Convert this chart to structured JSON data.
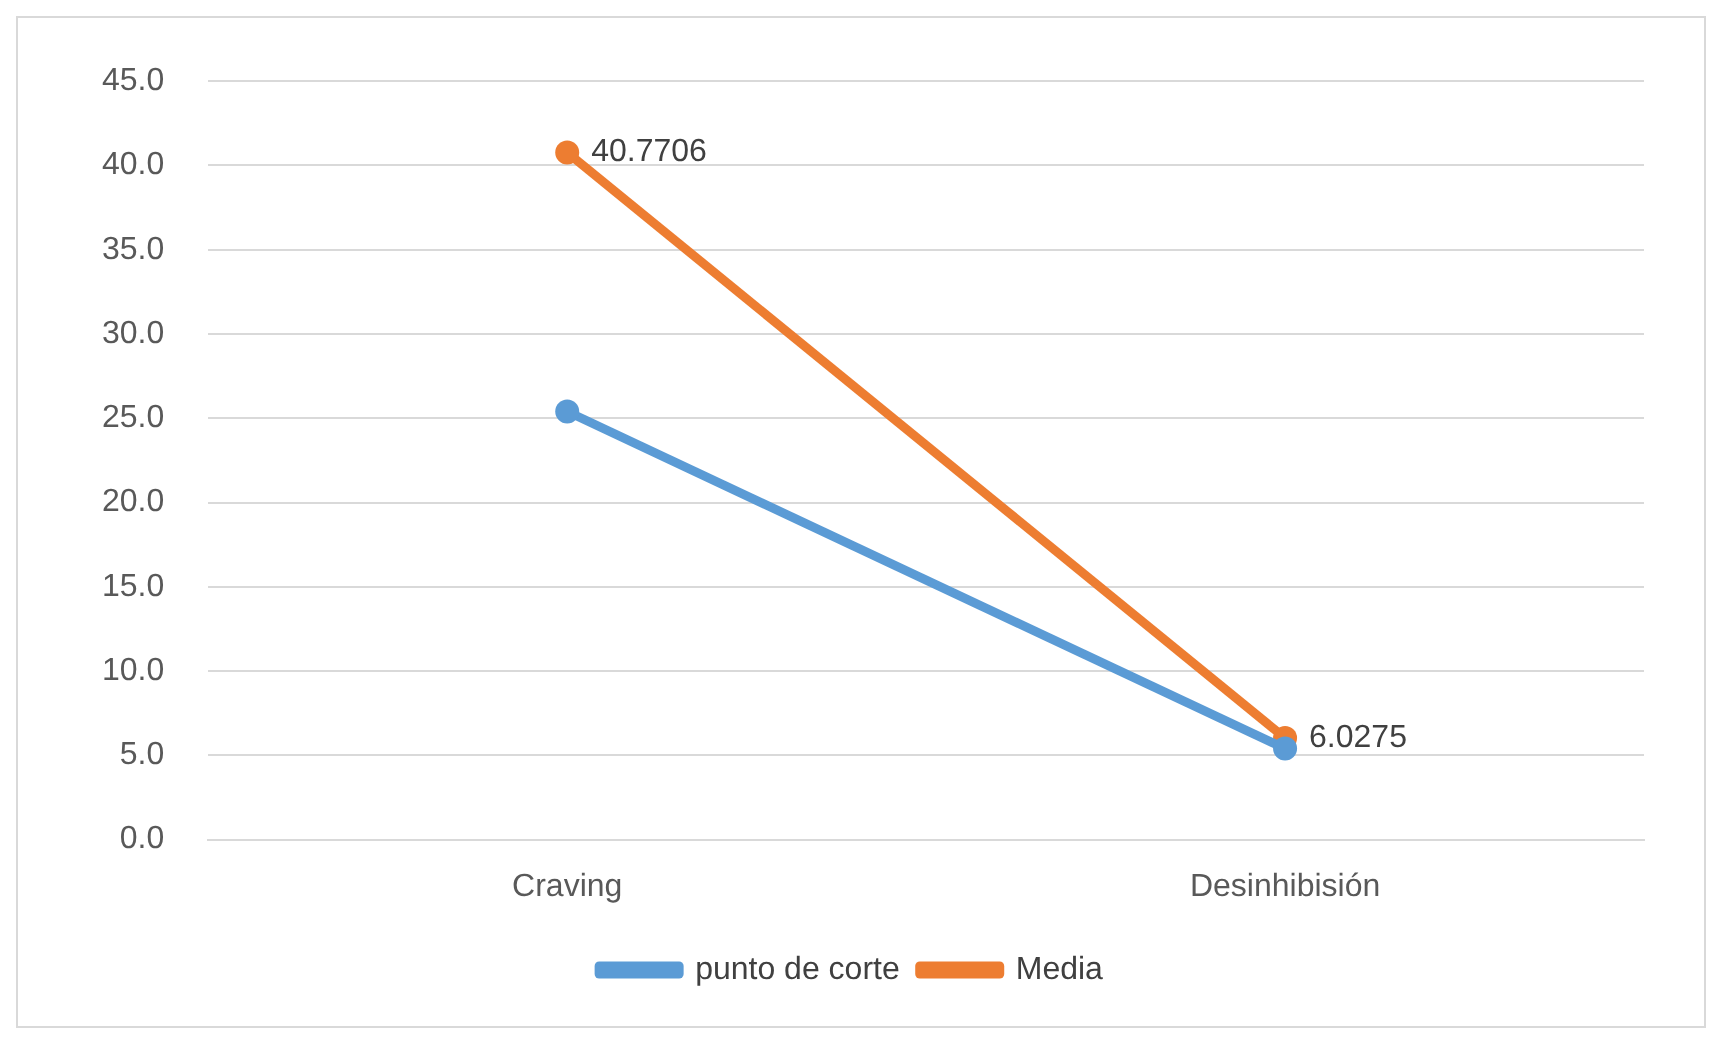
{
  "chart_data": {
    "type": "line",
    "categories": [
      "Craving",
      "Desinhibisión"
    ],
    "series": [
      {
        "name": "punto de corte",
        "color": "#5b9bd5",
        "values": [
          25.4,
          5.4
        ]
      },
      {
        "name": "Media",
        "color": "#ed7d31",
        "values": [
          40.7706,
          6.0275
        ],
        "value_labels": [
          "40.7706",
          "6.0275"
        ]
      }
    ],
    "ylim": [
      0,
      45
    ],
    "yticks": [
      {
        "value": 0,
        "label": "0.0"
      },
      {
        "value": 5,
        "label": "5.0"
      },
      {
        "value": 10,
        "label": "10.0"
      },
      {
        "value": 15,
        "label": "15.0"
      },
      {
        "value": 20,
        "label": "20.0"
      },
      {
        "value": 25,
        "label": "25.0"
      },
      {
        "value": 30,
        "label": "30.0"
      },
      {
        "value": 35,
        "label": "35.0"
      },
      {
        "value": 40,
        "label": "40.0"
      },
      {
        "value": 45,
        "label": "45.0"
      }
    ],
    "grid": "y",
    "legend": "bottom",
    "marker": "circle",
    "line_style": "solid"
  }
}
